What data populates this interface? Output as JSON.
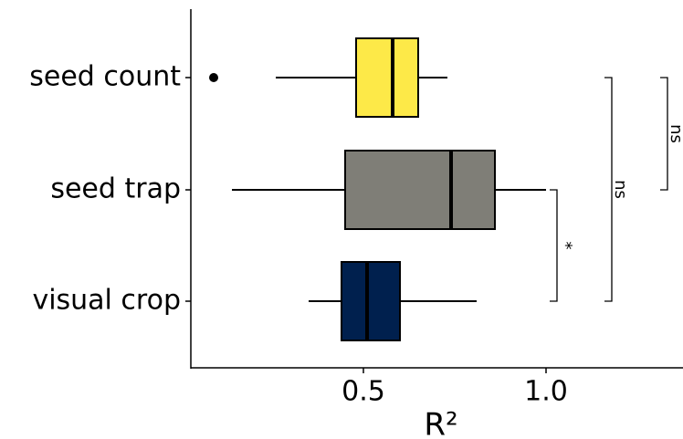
{
  "chart_data": {
    "type": "boxplot",
    "categories": [
      "seed count",
      "seed trap",
      "visual crop"
    ],
    "colors": [
      "#fde948",
      "#7f7e77",
      "#00204e"
    ],
    "boxes": [
      {
        "min": 0.26,
        "q1": 0.48,
        "median": 0.58,
        "q3": 0.65,
        "max": 0.73,
        "outliers": [
          0.09
        ]
      },
      {
        "min": 0.14,
        "q1": 0.45,
        "median": 0.74,
        "q3": 0.86,
        "max": 1.0,
        "outliers": []
      },
      {
        "min": 0.35,
        "q1": 0.44,
        "median": 0.51,
        "q3": 0.6,
        "max": 0.81,
        "outliers": []
      }
    ],
    "xlim": [
      0.0275,
      1.375
    ],
    "xticks": [
      0.5,
      {
        "value": 1,
        "label": "1.0"
      }
    ],
    "xlabel": "R²",
    "comparisons": [
      {
        "label": "*"
      },
      {
        "label": "ns"
      },
      {
        "label": "ns"
      }
    ]
  }
}
